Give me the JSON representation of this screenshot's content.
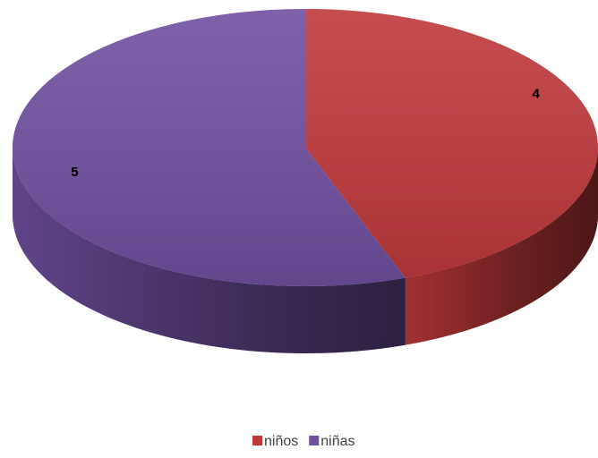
{
  "chart_data": {
    "type": "pie",
    "categories": [
      "niños",
      "niñas"
    ],
    "values": [
      4,
      5
    ],
    "colors": [
      "#c0393b",
      "#7050a0"
    ]
  }
}
